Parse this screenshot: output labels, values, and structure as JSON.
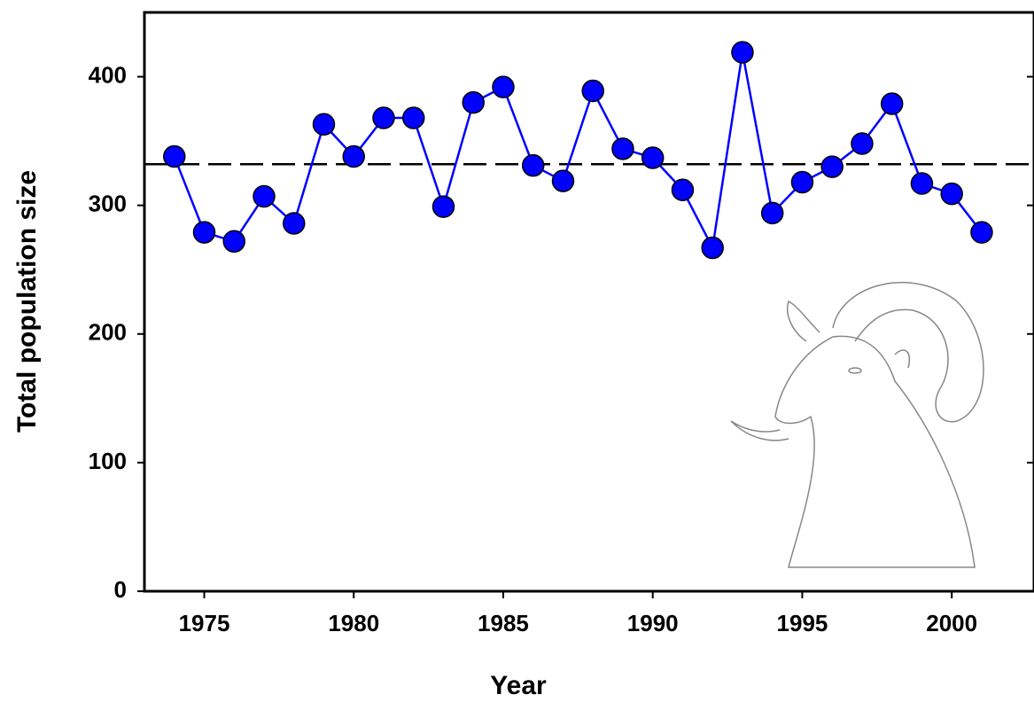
{
  "chart_data": {
    "type": "line",
    "x_label": "Year",
    "y_label": "Total population size",
    "x": [
      1974,
      1975,
      1976,
      1977,
      1978,
      1979,
      1980,
      1981,
      1982,
      1983,
      1984,
      1985,
      1986,
      1987,
      1988,
      1989,
      1990,
      1991,
      1992,
      1993,
      1994,
      1995,
      1996,
      1997,
      1998,
      1999,
      2000,
      2001
    ],
    "series": [
      {
        "color": "#0000ff",
        "values": [
          338,
          279,
          272,
          307,
          286,
          363,
          338,
          368,
          368,
          299,
          380,
          392,
          331,
          319,
          389,
          344,
          337,
          312,
          267,
          419,
          294,
          318,
          330,
          348,
          379,
          317,
          309,
          279
        ]
      }
    ],
    "reference_line": 332,
    "xlim": [
      1973,
      2002.75
    ],
    "xticks": [
      1975,
      1980,
      1985,
      1990,
      1995,
      2000
    ],
    "ylim": [
      0,
      450
    ],
    "yticks": [
      0,
      100,
      200,
      300,
      400
    ]
  }
}
